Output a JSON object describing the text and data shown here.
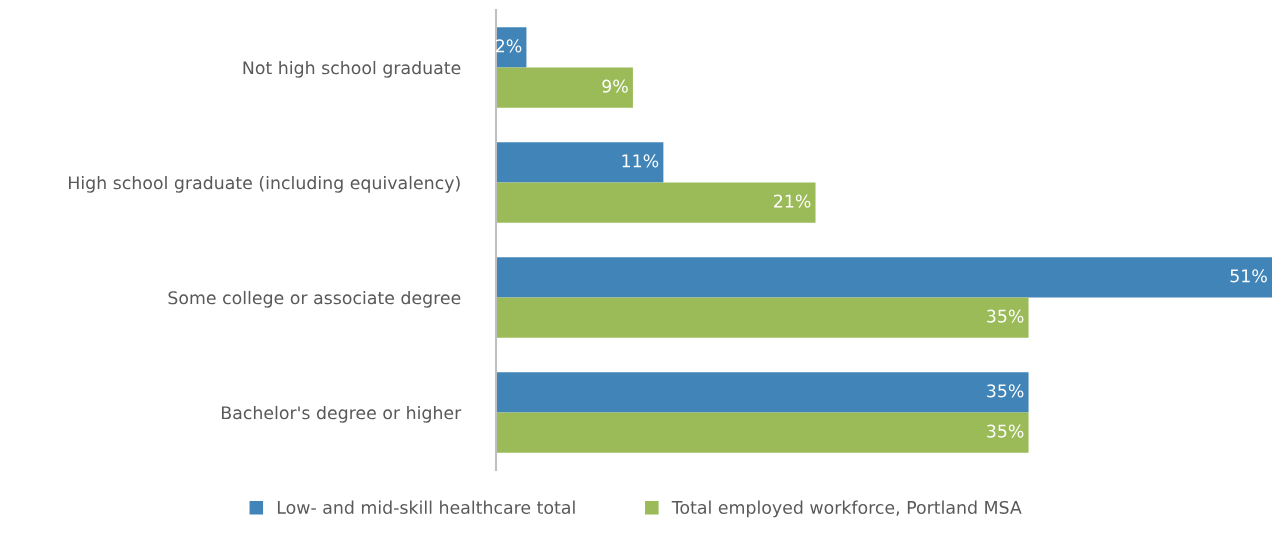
{
  "chart_data": {
    "type": "bar",
    "orientation": "horizontal",
    "categories": [
      "Not high school graduate",
      "High school graduate (including equivalency)",
      "Some college or associate degree",
      "Bachelor's degree or higher"
    ],
    "series": [
      {
        "name": "Low- and mid-skill healthcare total",
        "color": "#4184b8",
        "values": [
          2,
          11,
          51,
          35
        ],
        "value_labels": [
          "2%",
          "11%",
          "51%",
          "35%"
        ]
      },
      {
        "name": "Total employed workforce, Portland MSA",
        "color": "#9bbb59",
        "values": [
          9,
          21,
          35,
          35
        ],
        "value_labels": [
          "9%",
          "21%",
          "35%",
          "35%"
        ]
      }
    ],
    "legend": "bottom",
    "grid": false,
    "tick_labels": "y"
  }
}
